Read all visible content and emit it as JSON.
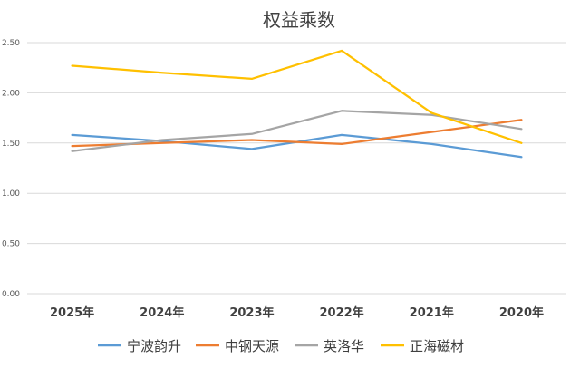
{
  "chart_data": {
    "type": "line",
    "title": "权益乘数",
    "categories": [
      "2025年",
      "2024年",
      "2023年",
      "2022年",
      "2021年",
      "2020年"
    ],
    "ylim": [
      0,
      2.5
    ],
    "yticks": [
      "0.00",
      "0.50",
      "1.00",
      "1.50",
      "2.00",
      "2.50"
    ],
    "grid": true,
    "legend_position": "bottom",
    "series": [
      {
        "name": "宁波韵升",
        "color": "#5B9BD5",
        "values": [
          1.58,
          1.52,
          1.44,
          1.58,
          1.49,
          1.36
        ]
      },
      {
        "name": "中钢天源",
        "color": "#ED7D31",
        "values": [
          1.47,
          1.5,
          1.53,
          1.49,
          1.61,
          1.73
        ]
      },
      {
        "name": "英洛华",
        "color": "#A5A5A5",
        "values": [
          1.42,
          1.53,
          1.59,
          1.82,
          1.78,
          1.64
        ]
      },
      {
        "name": "正海磁材",
        "color": "#FFC000",
        "values": [
          2.27,
          2.2,
          2.14,
          2.42,
          1.8,
          1.5
        ]
      }
    ]
  }
}
